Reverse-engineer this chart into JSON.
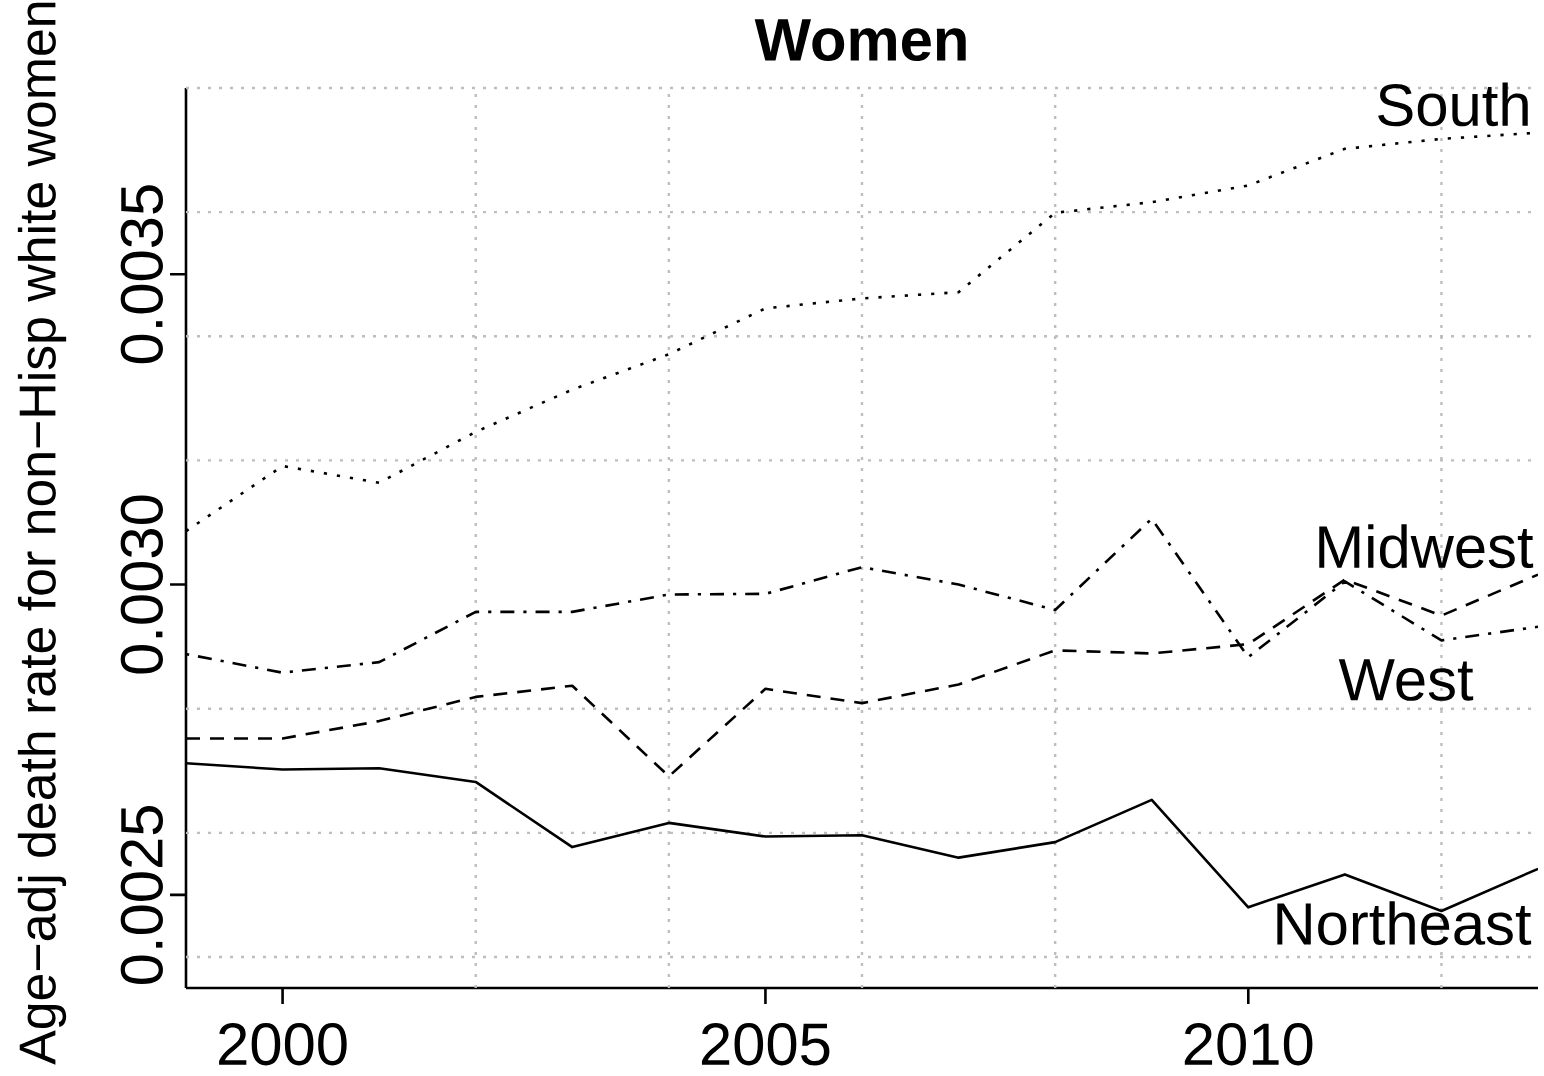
{
  "chart_data": {
    "type": "line",
    "title": "Women",
    "ylabel": "Age−adj death rate for non−Hisp white women",
    "x": [
      1999,
      2000,
      2001,
      2002,
      2003,
      2004,
      2005,
      2006,
      2007,
      2008,
      2009,
      2010,
      2011,
      2012,
      2013
    ],
    "series": [
      {
        "name": "South",
        "color": "#000000",
        "line_style": "dotted",
        "values": [
          0.003086,
          0.003191,
          0.003164,
          0.003246,
          0.003314,
          0.003371,
          0.003445,
          0.003461,
          0.003471,
          0.003599,
          0.003616,
          0.003643,
          0.003702,
          0.003718,
          0.003728
        ]
      },
      {
        "name": "Midwest",
        "color": "#000000",
        "line_style": "dashed",
        "values": [
          0.002752,
          0.002752,
          0.00278,
          0.002819,
          0.002837,
          0.002691,
          0.002832,
          0.002809,
          0.002839,
          0.002894,
          0.002889,
          0.002904,
          0.003008,
          0.00295,
          0.003016
        ]
      },
      {
        "name": "West",
        "color": "#000000",
        "line_style": "dashdot",
        "values": [
          0.002888,
          0.002858,
          0.002875,
          0.002956,
          0.002956,
          0.002984,
          0.002985,
          0.003028,
          0.003,
          0.002959,
          0.003106,
          0.002883,
          0.003005,
          0.00291,
          0.002932
        ]
      },
      {
        "name": "Northeast",
        "color": "#000000",
        "line_style": "solid",
        "values": [
          0.002712,
          0.002702,
          0.002704,
          0.002682,
          0.002577,
          0.002616,
          0.002594,
          0.002596,
          0.00256,
          0.002585,
          0.002653,
          0.00248,
          0.002533,
          0.002474,
          0.002542
        ]
      }
    ],
    "xlim": [
      1999,
      2013
    ],
    "xticks": [
      2000,
      {
        "value": 2002,
        "label": null
      },
      {
        "value": 2004,
        "label": null
      },
      2005,
      {
        "value": 2006,
        "label": null
      },
      {
        "value": 2008,
        "label": null
      },
      2010,
      {
        "value": 2012,
        "label": null
      }
    ],
    "ylim": [
      0.00235,
      0.0038
    ],
    "yticks": [
      {
        "value": 0.0024,
        "label": null
      },
      {
        "value": 0.0025,
        "label": "0.0025"
      },
      {
        "value": 0.0026,
        "label": null
      },
      {
        "value": 0.0028,
        "label": null
      },
      {
        "value": 0.003,
        "label": "0.0030"
      },
      {
        "value": 0.0032,
        "label": null
      },
      {
        "value": 0.0034,
        "label": null
      },
      {
        "value": 0.0035,
        "label": "0.0035"
      },
      {
        "value": 0.0036,
        "label": null
      },
      {
        "value": 0.0038,
        "label": null
      }
    ],
    "grid": true
  }
}
